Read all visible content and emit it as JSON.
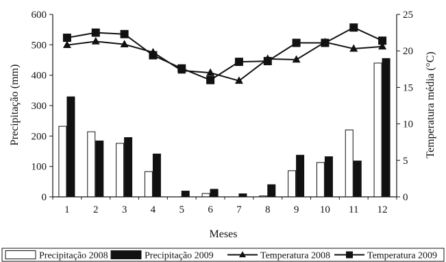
{
  "chart_data": {
    "type": "bar",
    "categories": [
      "1",
      "2",
      "3",
      "4",
      "5",
      "6",
      "7",
      "8",
      "9",
      "10",
      "11",
      "12"
    ],
    "series": [
      {
        "name": "Precipitação 2008",
        "kind": "bar",
        "axis": "left",
        "style": "white-fill",
        "values": [
          232,
          214,
          176,
          83,
          0,
          11,
          0,
          3,
          86,
          113,
          220,
          440
        ]
      },
      {
        "name": "Precipitação 2009",
        "kind": "bar",
        "axis": "left",
        "style": "black-fill",
        "values": [
          329,
          184,
          195,
          141,
          19,
          25,
          10,
          40,
          137,
          132,
          118,
          455
        ]
      },
      {
        "name": "Temperatura 2008",
        "kind": "line",
        "axis": "right",
        "marker": "triangle",
        "values": [
          20.8,
          21.3,
          20.9,
          19.8,
          17.3,
          17.0,
          15.9,
          18.9,
          18.8,
          21.2,
          20.3,
          20.6
        ]
      },
      {
        "name": "Temperatura 2009",
        "kind": "line",
        "axis": "right",
        "marker": "square",
        "values": [
          21.8,
          22.5,
          22.3,
          19.4,
          17.6,
          16.0,
          18.5,
          18.6,
          21.1,
          21.1,
          23.2,
          21.4
        ]
      }
    ],
    "xlabel": "Meses",
    "ylabel": "Precipitação (mm)",
    "y2label": "Temperatura média (°C)",
    "ylim": [
      0,
      600
    ],
    "y2lim": [
      0,
      25
    ],
    "yticks": [
      "0",
      "100",
      "200",
      "300",
      "400",
      "500",
      "600"
    ],
    "y2ticks": [
      "0",
      "5",
      "10",
      "15",
      "20",
      "25"
    ],
    "grid": false,
    "legend_position": "bottom",
    "colors": {
      "ink": "#111111",
      "paper": "#ffffff"
    }
  }
}
